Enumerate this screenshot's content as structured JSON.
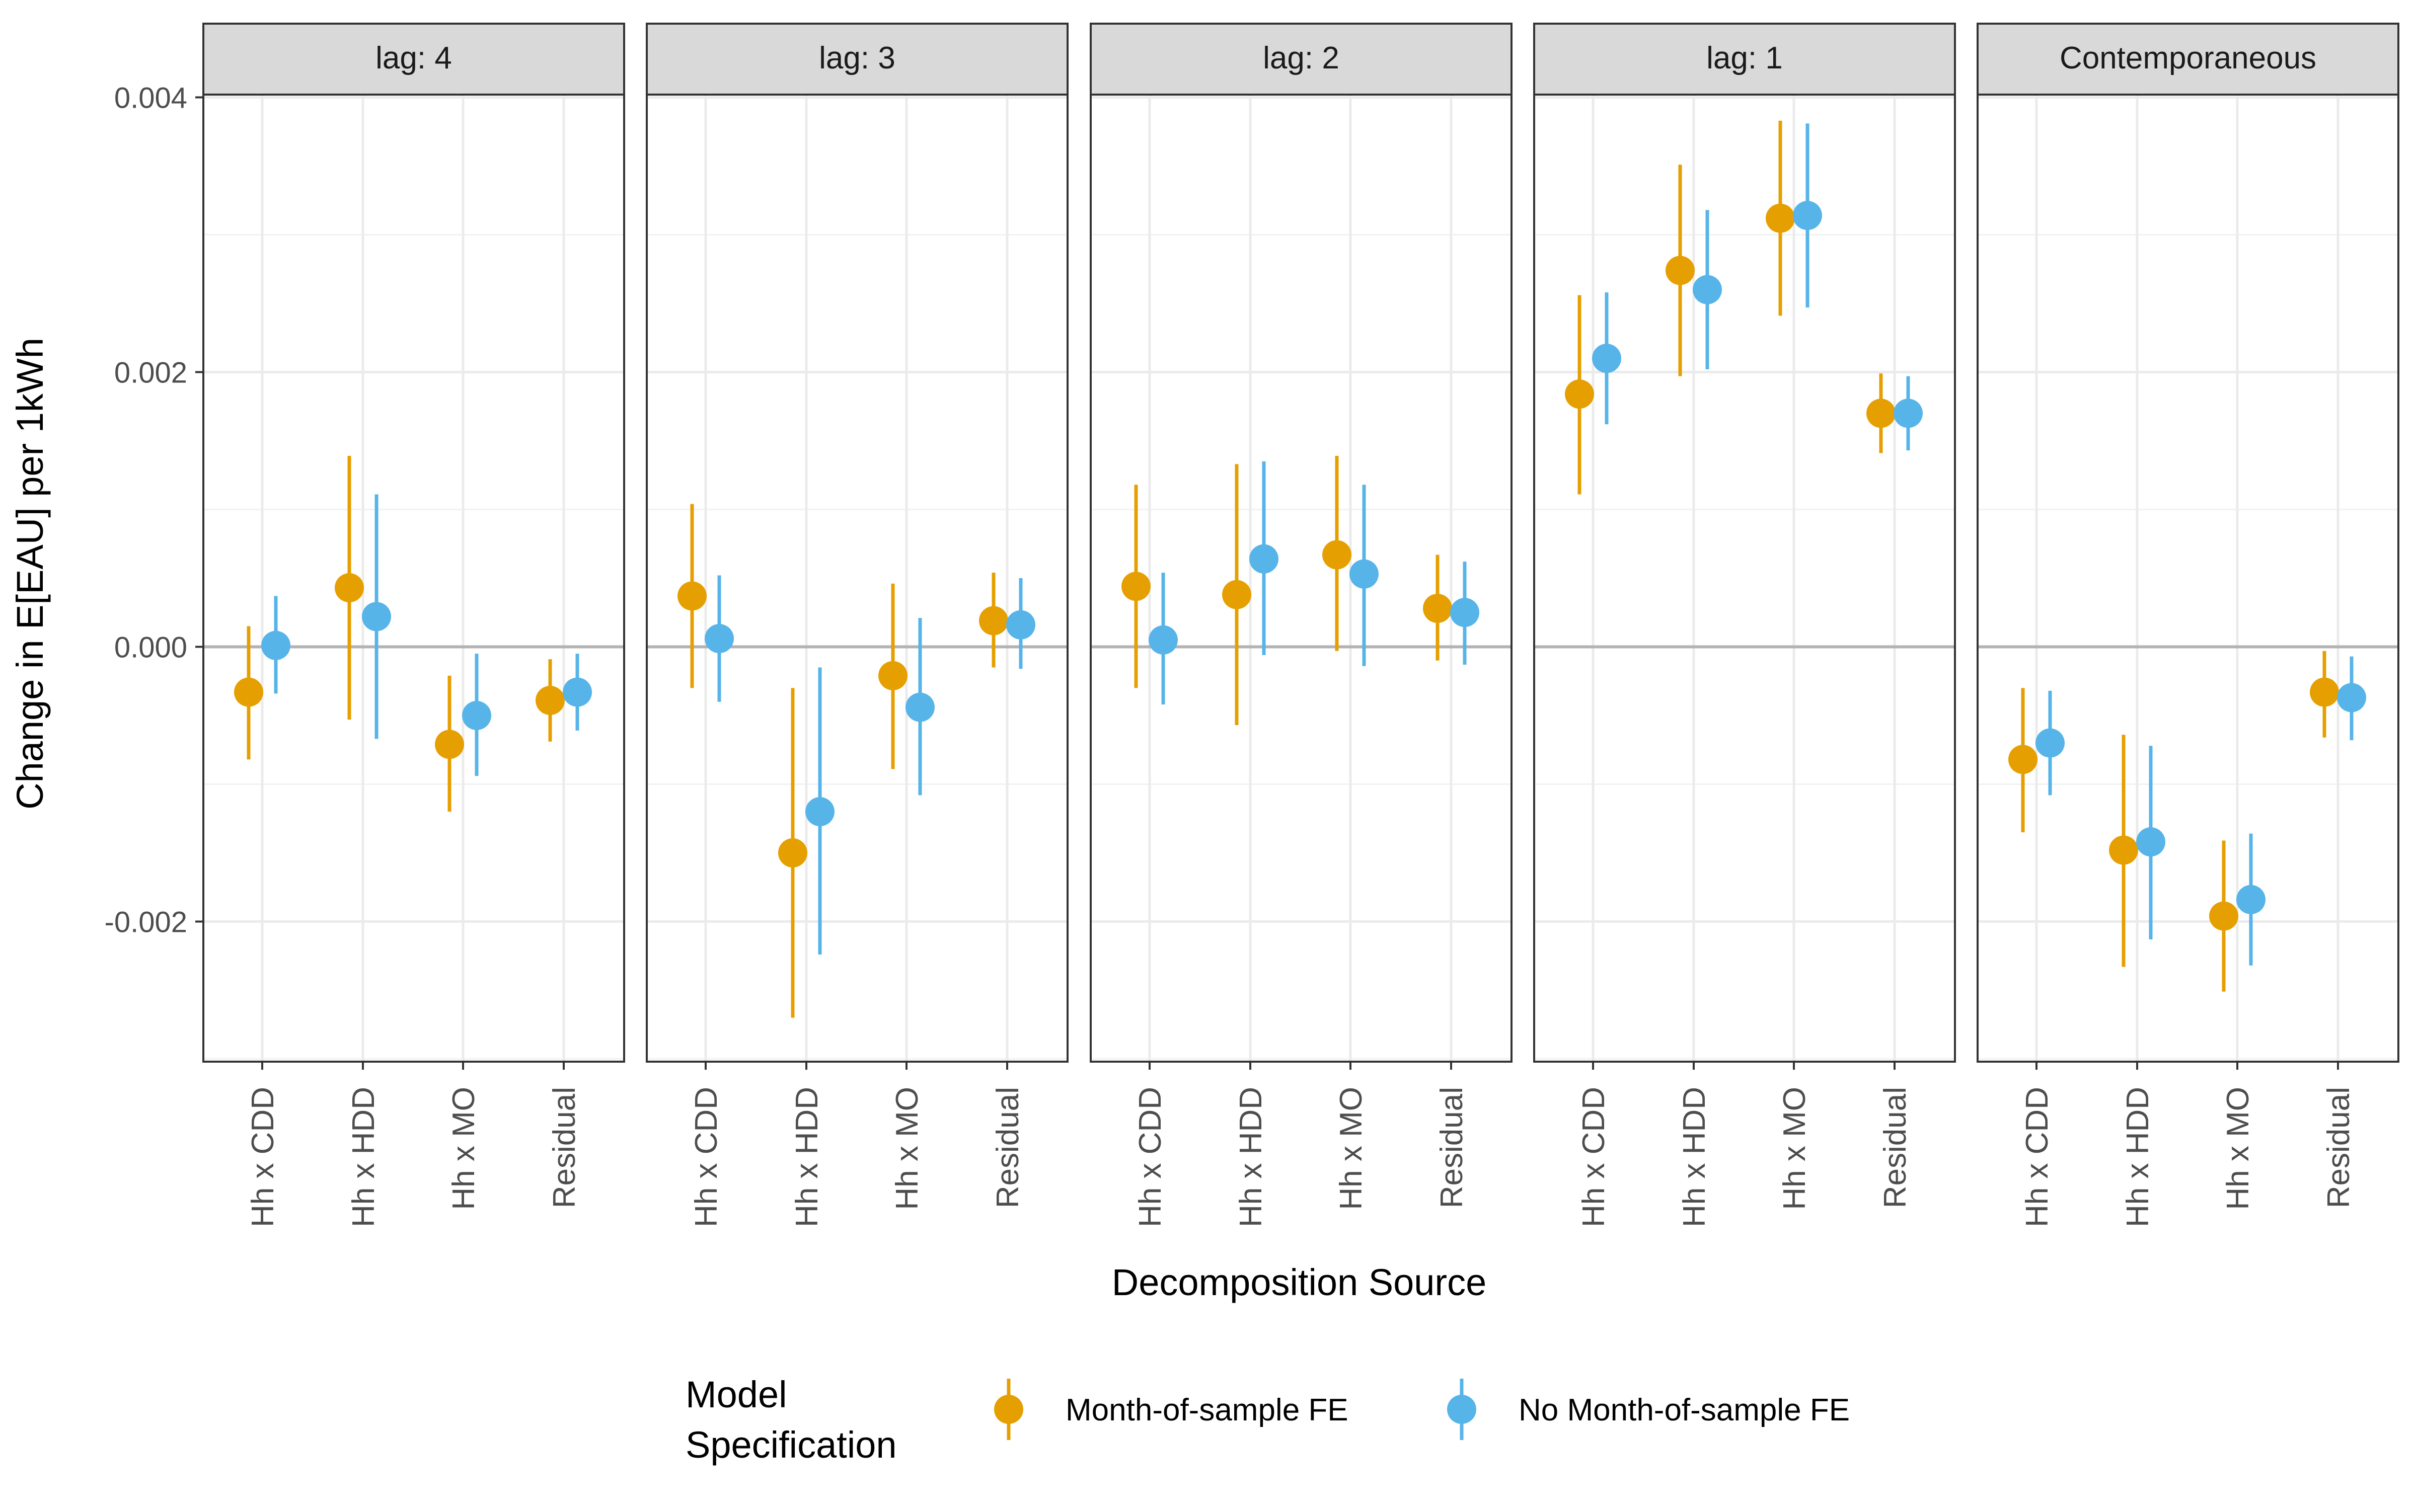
{
  "chart_data": {
    "type": "scatter",
    "ylabel": "Change in E[EAU] per 1kWh",
    "xlabel": "Decomposition Source",
    "ylim": [
      -0.00302,
      0.00402
    ],
    "yticks": [
      -0.002,
      0.0,
      0.002,
      0.004
    ],
    "ytick_labels": [
      "-0.002",
      "0.000",
      "0.002",
      "0.004"
    ],
    "hline_at": 0,
    "grid": true,
    "categories": [
      "Hh x CDD",
      "Hh x HDD",
      "Hh x MO",
      "Residual"
    ],
    "legend": {
      "title": "Model\nSpecification",
      "position": "bottom"
    },
    "series": [
      {
        "name": "Month-of-sample FE",
        "color": "#E69F00"
      },
      {
        "name": "No Month-of-sample FE",
        "color": "#56B4E9"
      }
    ],
    "panels": [
      {
        "label": "lag: 4",
        "points": [
          [
            {
              "y": -0.00033,
              "lo": -0.00082,
              "hi": 0.00015
            },
            {
              "y": 1e-05,
              "lo": -0.00034,
              "hi": 0.00037
            }
          ],
          [
            {
              "y": 0.00043,
              "lo": -0.00053,
              "hi": 0.00139
            },
            {
              "y": 0.00022,
              "lo": -0.00067,
              "hi": 0.00111
            }
          ],
          [
            {
              "y": -0.00071,
              "lo": -0.0012,
              "hi": -0.00021
            },
            {
              "y": -0.0005,
              "lo": -0.00094,
              "hi": -5e-05
            }
          ],
          [
            {
              "y": -0.00039,
              "lo": -0.00069,
              "hi": -9e-05
            },
            {
              "y": -0.00033,
              "lo": -0.00061,
              "hi": -5e-05
            }
          ]
        ]
      },
      {
        "label": "lag: 3",
        "points": [
          [
            {
              "y": 0.00037,
              "lo": -0.0003,
              "hi": 0.00104
            },
            {
              "y": 6e-05,
              "lo": -0.0004,
              "hi": 0.00052
            }
          ],
          [
            {
              "y": -0.0015,
              "lo": -0.0027,
              "hi": -0.0003
            },
            {
              "y": -0.0012,
              "lo": -0.00224,
              "hi": -0.00015
            }
          ],
          [
            {
              "y": -0.00021,
              "lo": -0.00089,
              "hi": 0.00046
            },
            {
              "y": -0.00044,
              "lo": -0.00108,
              "hi": 0.00021
            }
          ],
          [
            {
              "y": 0.00019,
              "lo": -0.00015,
              "hi": 0.00054
            },
            {
              "y": 0.00016,
              "lo": -0.00016,
              "hi": 0.0005
            }
          ]
        ]
      },
      {
        "label": "lag: 2",
        "points": [
          [
            {
              "y": 0.00044,
              "lo": -0.0003,
              "hi": 0.00118
            },
            {
              "y": 5e-05,
              "lo": -0.00042,
              "hi": 0.00054
            }
          ],
          [
            {
              "y": 0.00038,
              "lo": -0.00057,
              "hi": 0.00133
            },
            {
              "y": 0.00064,
              "lo": -6e-05,
              "hi": 0.00135
            }
          ],
          [
            {
              "y": 0.00067,
              "lo": -3e-05,
              "hi": 0.00139
            },
            {
              "y": 0.00053,
              "lo": -0.00014,
              "hi": 0.00118
            }
          ],
          [
            {
              "y": 0.00028,
              "lo": -0.0001,
              "hi": 0.00067
            },
            {
              "y": 0.00025,
              "lo": -0.00013,
              "hi": 0.00062
            }
          ]
        ]
      },
      {
        "label": "lag: 1",
        "points": [
          [
            {
              "y": 0.00184,
              "lo": 0.00111,
              "hi": 0.00256
            },
            {
              "y": 0.0021,
              "lo": 0.00162,
              "hi": 0.00258
            }
          ],
          [
            {
              "y": 0.00274,
              "lo": 0.00197,
              "hi": 0.00351
            },
            {
              "y": 0.0026,
              "lo": 0.00202,
              "hi": 0.00318
            }
          ],
          [
            {
              "y": 0.00312,
              "lo": 0.00241,
              "hi": 0.00383
            },
            {
              "y": 0.00314,
              "lo": 0.00247,
              "hi": 0.00381
            }
          ],
          [
            {
              "y": 0.0017,
              "lo": 0.00141,
              "hi": 0.00199
            },
            {
              "y": 0.0017,
              "lo": 0.00143,
              "hi": 0.00197
            }
          ]
        ]
      },
      {
        "label": "Contemporaneous",
        "points": [
          [
            {
              "y": -0.00082,
              "lo": -0.00135,
              "hi": -0.0003
            },
            {
              "y": -0.0007,
              "lo": -0.00108,
              "hi": -0.00032
            }
          ],
          [
            {
              "y": -0.00148,
              "lo": -0.00233,
              "hi": -0.00064
            },
            {
              "y": -0.00142,
              "lo": -0.00213,
              "hi": -0.00072
            }
          ],
          [
            {
              "y": -0.00196,
              "lo": -0.00251,
              "hi": -0.00141
            },
            {
              "y": -0.00184,
              "lo": -0.00232,
              "hi": -0.00136
            }
          ],
          [
            {
              "y": -0.00033,
              "lo": -0.00066,
              "hi": -3e-05
            },
            {
              "y": -0.00037,
              "lo": -0.00068,
              "hi": -7e-05
            }
          ]
        ]
      }
    ]
  }
}
